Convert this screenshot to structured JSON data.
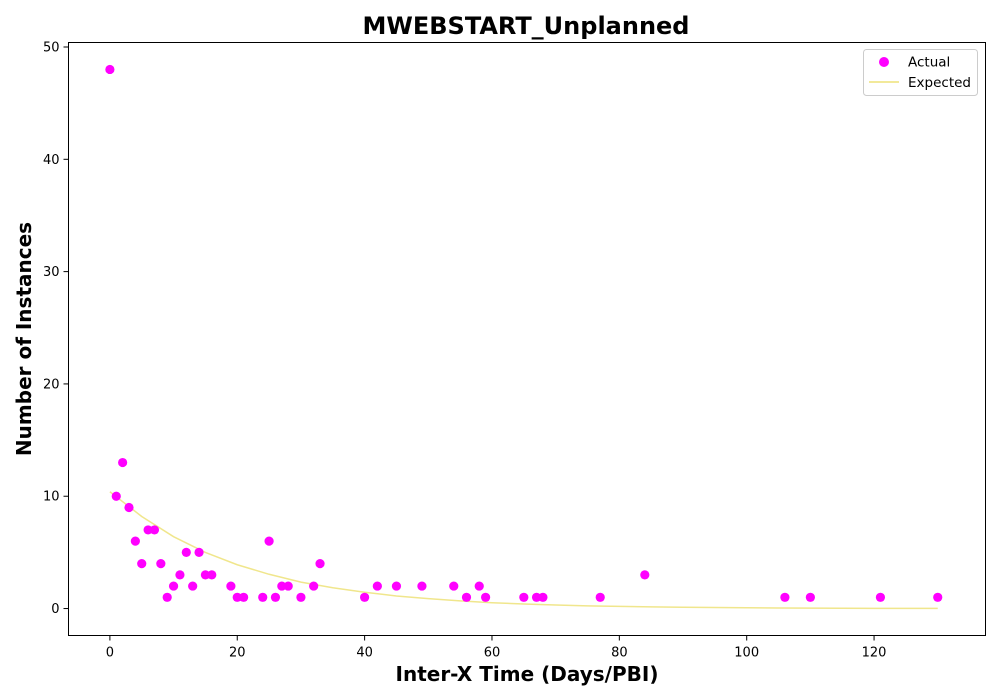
{
  "chart_data": {
    "type": "scatter",
    "title": "MWEBSTART_Unplanned",
    "xlabel": "Inter-X Time (Days/PBI)",
    "ylabel": "Number of Instances",
    "xlim": [
      -6.5,
      137.5
    ],
    "ylim": [
      -2.4,
      50.4
    ],
    "xticks": [
      0,
      20,
      40,
      60,
      80,
      100,
      120
    ],
    "yticks": [
      0,
      10,
      20,
      30,
      40,
      50
    ],
    "grid": false,
    "legend_position": "top-right",
    "series": [
      {
        "name": "Actual",
        "kind": "scatter",
        "color": "#ff00ff",
        "points": [
          [
            0,
            48
          ],
          [
            1,
            10
          ],
          [
            2,
            13
          ],
          [
            3,
            9
          ],
          [
            4,
            6
          ],
          [
            5,
            4
          ],
          [
            6,
            7
          ],
          [
            7,
            7
          ],
          [
            8,
            4
          ],
          [
            9,
            1
          ],
          [
            10,
            2
          ],
          [
            11,
            3
          ],
          [
            12,
            5
          ],
          [
            13,
            2
          ],
          [
            14,
            5
          ],
          [
            15,
            3
          ],
          [
            16,
            3
          ],
          [
            19,
            2
          ],
          [
            20,
            1
          ],
          [
            21,
            1
          ],
          [
            24,
            1
          ],
          [
            25,
            6
          ],
          [
            26,
            1
          ],
          [
            27,
            2
          ],
          [
            28,
            2
          ],
          [
            30,
            1
          ],
          [
            32,
            2
          ],
          [
            33,
            4
          ],
          [
            40,
            1
          ],
          [
            42,
            2
          ],
          [
            45,
            2
          ],
          [
            49,
            2
          ],
          [
            54,
            2
          ],
          [
            56,
            1
          ],
          [
            58,
            2
          ],
          [
            59,
            1
          ],
          [
            65,
            1
          ],
          [
            67,
            1
          ],
          [
            68,
            1
          ],
          [
            77,
            1
          ],
          [
            84,
            3
          ],
          [
            106,
            1
          ],
          [
            110,
            1
          ],
          [
            121,
            1
          ],
          [
            130,
            1
          ]
        ]
      },
      {
        "name": "Expected",
        "kind": "line",
        "color": "#f0e68c",
        "points": [
          [
            0,
            10.4
          ],
          [
            5,
            8.2
          ],
          [
            10,
            6.4
          ],
          [
            15,
            5.0
          ],
          [
            20,
            3.9
          ],
          [
            25,
            3.05
          ],
          [
            30,
            2.35
          ],
          [
            35,
            1.85
          ],
          [
            40,
            1.45
          ],
          [
            45,
            1.12
          ],
          [
            50,
            0.88
          ],
          [
            55,
            0.68
          ],
          [
            60,
            0.52
          ],
          [
            65,
            0.4
          ],
          [
            70,
            0.31
          ],
          [
            75,
            0.24
          ],
          [
            80,
            0.19
          ],
          [
            85,
            0.15
          ],
          [
            90,
            0.11
          ],
          [
            95,
            0.09
          ],
          [
            100,
            0.07
          ],
          [
            105,
            0.05
          ],
          [
            110,
            0.04
          ],
          [
            115,
            0.03
          ],
          [
            120,
            0.02
          ],
          [
            125,
            0.02
          ],
          [
            130,
            0.01
          ]
        ]
      }
    ]
  }
}
